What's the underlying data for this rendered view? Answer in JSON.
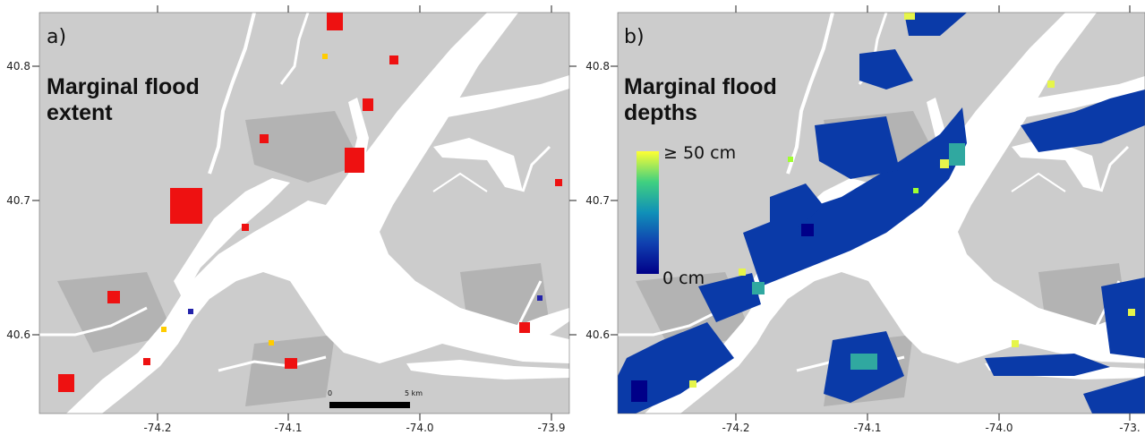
{
  "panel_a": {
    "letter": "a)",
    "title_line1": "Marginal flood",
    "title_line2": "extent",
    "x_ticks": [
      "-74.2",
      "-74.1",
      "-74.0",
      "-73.9"
    ],
    "y_ticks": [
      "40.8",
      "40.7",
      "40.6"
    ],
    "scale_bar": {
      "start_label": "0",
      "end_label": "5 km"
    }
  },
  "panel_b": {
    "letter": "b)",
    "title_line1": "Marginal flood",
    "title_line2": "depths",
    "x_ticks": [
      "-74.2",
      "-74.1",
      "-74.0",
      "-73."
    ],
    "y_ticks": [
      "40.8",
      "40.7",
      "40.6"
    ],
    "legend": {
      "max_label": "≥ 50 cm",
      "min_label": "0 cm",
      "colors": [
        "#ffff33",
        "#a0ff30",
        "#30d080",
        "#10a0b0",
        "#0060c0",
        "#1030a0",
        "#000088"
      ]
    }
  },
  "colors": {
    "land": "#cccccc",
    "low_land": "#b3b3b3",
    "water": "#ffffff",
    "flood_extent": "#ee1111",
    "flood_shallow": "#0a3aa8",
    "flood_deep": "#e6f54a"
  }
}
